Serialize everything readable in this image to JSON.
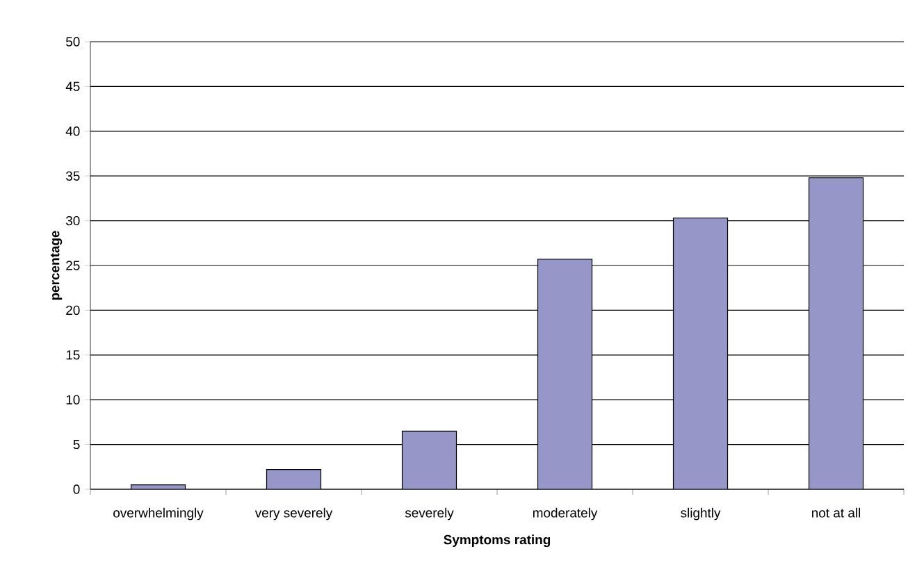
{
  "chart_data": {
    "type": "bar",
    "xlabel": "Symptoms rating",
    "ylabel": "percentage",
    "categories": [
      "overwhelmingly",
      "very severely",
      "severely",
      "moderately",
      "slightly",
      "not at all"
    ],
    "values": [
      0.5,
      2.2,
      6.5,
      25.7,
      30.3,
      34.8
    ],
    "color": "#9696c8",
    "ylim": [
      0,
      50
    ],
    "yticks": [
      0,
      5,
      10,
      15,
      20,
      25,
      30,
      35,
      40,
      45,
      50
    ],
    "grid": "y"
  }
}
